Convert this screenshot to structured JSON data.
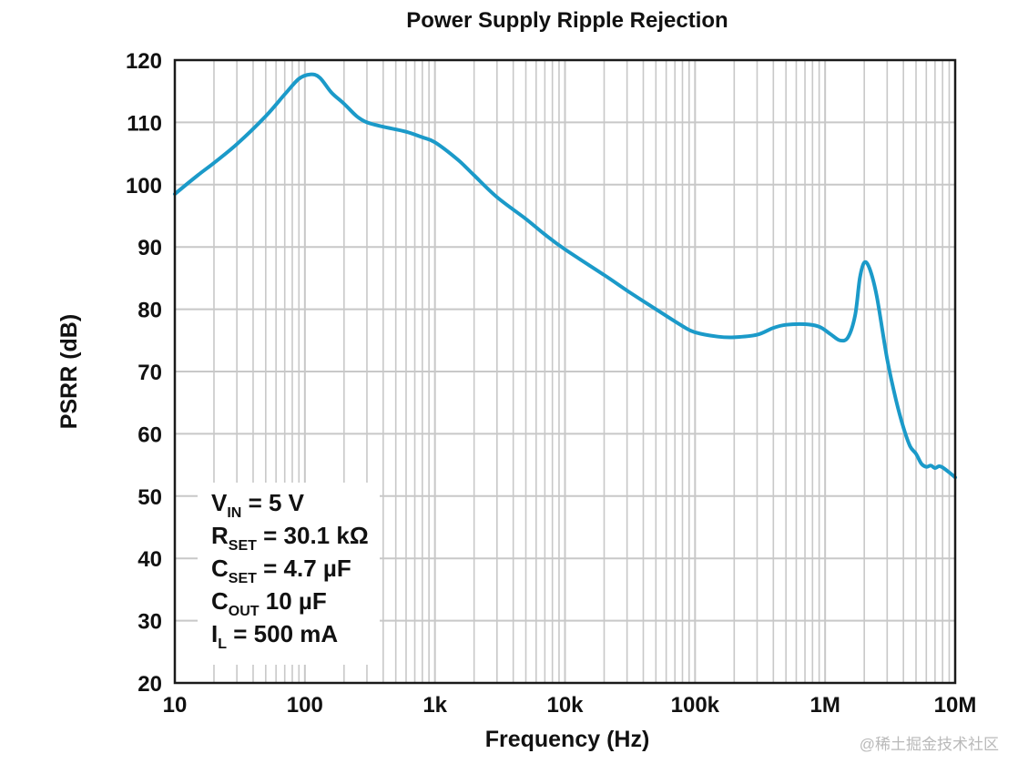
{
  "chart_data": {
    "type": "line",
    "title": "Power Supply Ripple Rejection",
    "xlabel": "Frequency (Hz)",
    "ylabel": "PSRR (dB)",
    "x_scale": "log",
    "xlim": [
      10,
      10000000
    ],
    "ylim": [
      20,
      120
    ],
    "grid": true,
    "x_ticks": [
      {
        "value": 10,
        "label": "10"
      },
      {
        "value": 100,
        "label": "100"
      },
      {
        "value": 1000,
        "label": "1k"
      },
      {
        "value": 10000,
        "label": "10k"
      },
      {
        "value": 100000,
        "label": "100k"
      },
      {
        "value": 1000000,
        "label": "1M"
      },
      {
        "value": 10000000,
        "label": "10M"
      }
    ],
    "y_ticks": [
      20,
      30,
      40,
      50,
      60,
      70,
      80,
      90,
      100,
      110,
      120
    ],
    "series": [
      {
        "name": "PSRR",
        "color": "#1b9ac9",
        "points": [
          [
            10,
            98.5
          ],
          [
            15,
            101.5
          ],
          [
            20,
            103.5
          ],
          [
            30,
            106.5
          ],
          [
            50,
            111
          ],
          [
            70,
            114.5
          ],
          [
            90,
            117
          ],
          [
            110,
            117.7
          ],
          [
            130,
            117.2
          ],
          [
            160,
            114.8
          ],
          [
            200,
            113
          ],
          [
            250,
            111
          ],
          [
            300,
            110
          ],
          [
            400,
            109.3
          ],
          [
            600,
            108.5
          ],
          [
            800,
            107.6
          ],
          [
            1000,
            106.8
          ],
          [
            1500,
            104
          ],
          [
            2000,
            101.5
          ],
          [
            3000,
            98
          ],
          [
            5000,
            94.5
          ],
          [
            7000,
            92
          ],
          [
            10000,
            89.6
          ],
          [
            20000,
            85.5
          ],
          [
            30000,
            83
          ],
          [
            50000,
            80
          ],
          [
            80000,
            77.3
          ],
          [
            100000,
            76.3
          ],
          [
            150000,
            75.6
          ],
          [
            200000,
            75.5
          ],
          [
            300000,
            75.9
          ],
          [
            400000,
            77
          ],
          [
            500000,
            77.5
          ],
          [
            700000,
            77.6
          ],
          [
            900000,
            77.2
          ],
          [
            1100000,
            76
          ],
          [
            1300000,
            75
          ],
          [
            1500000,
            75.5
          ],
          [
            1700000,
            79
          ],
          [
            1850000,
            85
          ],
          [
            2000000,
            87.5
          ],
          [
            2200000,
            86.5
          ],
          [
            2500000,
            82
          ],
          [
            3000000,
            72
          ],
          [
            3500000,
            65.5
          ],
          [
            4000000,
            61
          ],
          [
            4500000,
            58
          ],
          [
            5000000,
            56.8
          ],
          [
            5500000,
            55.2
          ],
          [
            6000000,
            54.7
          ],
          [
            6500000,
            54.9
          ],
          [
            7000000,
            54.5
          ],
          [
            7500000,
            54.8
          ],
          [
            8000000,
            54.6
          ],
          [
            9000000,
            53.8
          ],
          [
            10000000,
            53
          ]
        ]
      }
    ],
    "annotation": {
      "lines": [
        {
          "main": "V",
          "sub": "IN",
          "rest": " = 5 V"
        },
        {
          "main": "R",
          "sub": "SET",
          "rest": " = 30.1 kΩ"
        },
        {
          "main": "C",
          "sub": "SET",
          "rest": " = 4.7 µF"
        },
        {
          "main": "C",
          "sub": "OUT",
          "rest": " 10 µF"
        },
        {
          "main": "I",
          "sub": "L",
          "rest": " = 500 mA"
        }
      ]
    }
  },
  "watermark": "@稀土掘金技术社区",
  "colors": {
    "line": "#1b9ac9",
    "grid": "#c8c8c8",
    "frame": "#1a1a1a",
    "text": "#111111"
  }
}
